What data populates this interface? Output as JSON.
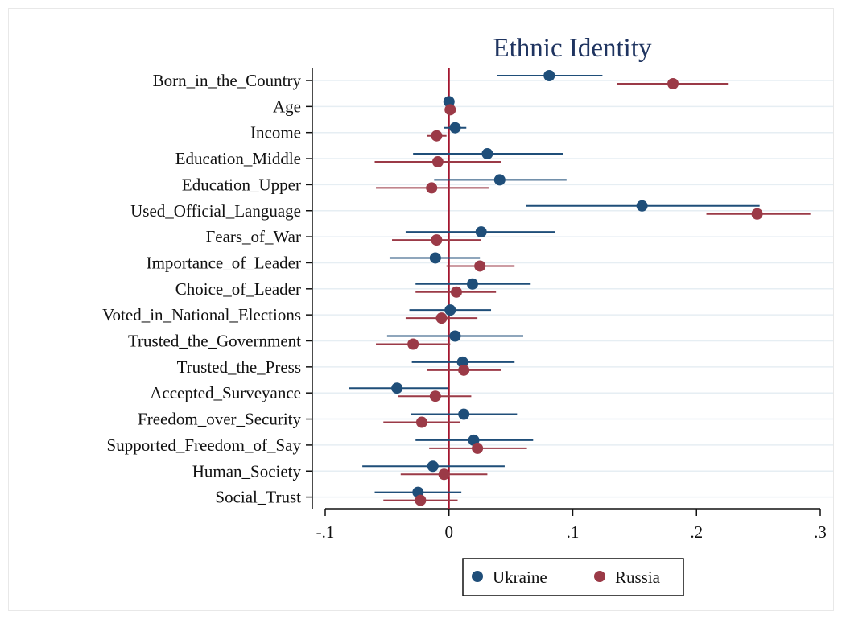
{
  "chart_data": {
    "type": "scatter",
    "title": "Ethnic Identity",
    "xlabel": "",
    "ylabel": "",
    "xlim": [
      -0.1,
      0.3
    ],
    "xticks": [
      -0.1,
      0,
      0.1,
      0.2,
      0.3
    ],
    "xtick_labels": [
      "-.1",
      "0",
      ".1",
      ".2",
      ".3"
    ],
    "reference_line_x": 0,
    "grid": "horizontal",
    "legend_position": "bottom",
    "categories": [
      "Born_in_the_Country",
      "Age",
      "Income",
      "Education_Middle",
      "Education_Upper",
      "Used_Official_Language",
      "Fears_of_War",
      "Importance_of_Leader",
      "Choice_of_Leader",
      "Voted_in_National_Elections",
      "Trusted_the_Government",
      "Trusted_the_Press",
      "Accepted_Surveyance",
      "Freedom_over_Security",
      "Supported_Freedom_of_Say",
      "Human_Society",
      "Social_Trust"
    ],
    "series": [
      {
        "name": "Ukraine",
        "color": "#1f4e79",
        "values": [
          0.081,
          0.0,
          0.005,
          0.031,
          0.041,
          0.156,
          0.026,
          -0.011,
          0.019,
          0.001,
          0.005,
          0.011,
          -0.042,
          0.012,
          0.02,
          -0.013,
          -0.025
        ],
        "ci_low": [
          0.039,
          -0.001,
          -0.004,
          -0.029,
          -0.012,
          0.062,
          -0.035,
          -0.048,
          -0.027,
          -0.032,
          -0.05,
          -0.03,
          -0.081,
          -0.031,
          -0.027,
          -0.07,
          -0.06
        ],
        "ci_high": [
          0.124,
          0.002,
          0.014,
          0.092,
          0.095,
          0.251,
          0.086,
          0.025,
          0.066,
          0.034,
          0.06,
          0.053,
          -0.001,
          0.055,
          0.068,
          0.045,
          0.01
        ]
      },
      {
        "name": "Russia",
        "color": "#9b3a47",
        "values": [
          0.181,
          0.001,
          -0.01,
          -0.009,
          -0.014,
          0.249,
          -0.01,
          0.025,
          0.006,
          -0.006,
          -0.029,
          0.012,
          -0.011,
          -0.022,
          0.023,
          -0.004,
          -0.023
        ],
        "ci_low": [
          0.136,
          0.0,
          -0.018,
          -0.06,
          -0.059,
          0.208,
          -0.046,
          -0.002,
          -0.027,
          -0.035,
          -0.059,
          -0.018,
          -0.041,
          -0.053,
          -0.016,
          -0.039,
          -0.053
        ],
        "ci_high": [
          0.226,
          0.002,
          -0.002,
          0.042,
          0.032,
          0.292,
          0.026,
          0.053,
          0.038,
          0.023,
          0.001,
          0.042,
          0.018,
          0.009,
          0.063,
          0.031,
          0.007
        ]
      }
    ]
  }
}
